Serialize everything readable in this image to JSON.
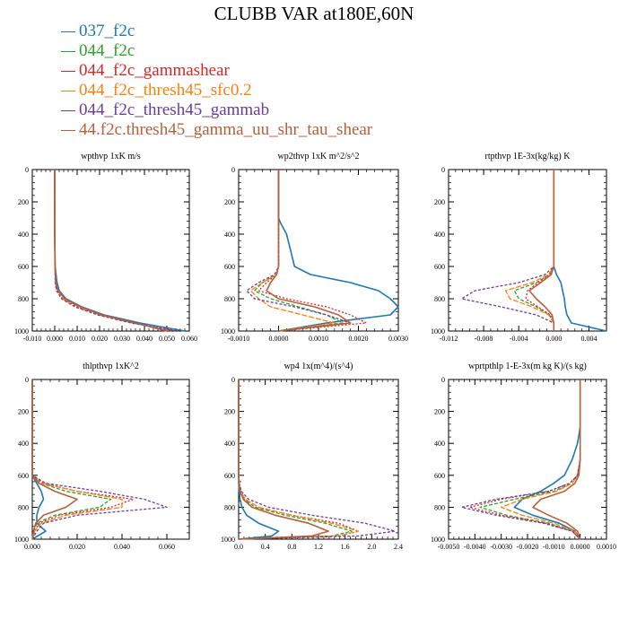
{
  "title": "CLUBB VAR at180E,60N",
  "colors": [
    "#1f77b4",
    "#2ca02c",
    "#d62728",
    "#ff7f0e",
    "#6a3d9a",
    "#b5603a"
  ],
  "legend": [
    {
      "label": "037_f2c",
      "color": "#1f77b4"
    },
    {
      "label": "044_f2c",
      "color": "#2ca02c"
    },
    {
      "label": "044_f2c_gammashear",
      "color": "#d62728"
    },
    {
      "label": "044_f2c_thresh45_sfc0.2",
      "color": "#ff7f0e"
    },
    {
      "label": "044_f2c_thresh45_gammab",
      "color": "#6a3d9a"
    },
    {
      "label": "44.f2c.thresh45_gamma_uu_shr_tau_shear",
      "color": "#b5603a"
    }
  ],
  "chart_data": [
    {
      "type": "line",
      "title": "wpthvp   1xK m/s",
      "xlim": [
        -0.01,
        0.06
      ],
      "xticks": [
        "-0.010",
        "0.000",
        "0.010",
        "0.020",
        "0.030",
        "0.040",
        "0.050",
        "0.060"
      ],
      "xtick_values": [
        -0.01,
        0.0,
        0.01,
        0.02,
        0.03,
        0.04,
        0.05,
        0.06
      ],
      "ylim": [
        0,
        1000
      ],
      "yticks": [
        "0",
        "200",
        "400",
        "600",
        "800",
        "1000"
      ],
      "y": [
        0,
        200,
        400,
        600,
        700,
        750,
        800,
        850,
        900,
        950,
        1000
      ],
      "series": [
        {
          "values": [
            0.0,
            0.0,
            0.0,
            0.0002,
            0.001,
            0.002,
            0.005,
            0.012,
            0.022,
            0.038,
            0.058
          ]
        },
        {
          "values": [
            0.0,
            0.0,
            0.0,
            0.0001,
            0.0005,
            0.0015,
            0.004,
            0.011,
            0.021,
            0.036,
            0.05
          ]
        },
        {
          "values": [
            0.0,
            0.0,
            0.0,
            0.0001,
            0.0003,
            0.001,
            0.0035,
            0.01,
            0.02,
            0.035,
            0.055
          ]
        },
        {
          "values": [
            0.0,
            0.0,
            0.0,
            0.0001,
            0.0004,
            0.0012,
            0.004,
            0.011,
            0.02,
            0.035,
            0.052
          ]
        },
        {
          "values": [
            0.0,
            0.0,
            0.0,
            0.0001,
            0.0002,
            0.0008,
            0.003,
            0.009,
            0.019,
            0.034,
            0.054
          ]
        },
        {
          "values": [
            0.0,
            0.0,
            0.0,
            0.0001,
            0.0004,
            0.0015,
            0.0045,
            0.0115,
            0.021,
            0.036,
            0.05
          ]
        }
      ]
    },
    {
      "type": "line",
      "title": "wp2thvp   1xK m^2/s^2",
      "xlim": [
        -0.001,
        0.003
      ],
      "xticks": [
        "-0.0010",
        "0.0000",
        "0.0010",
        "0.0020",
        "0.0030"
      ],
      "xtick_values": [
        -0.001,
        0.0,
        0.001,
        0.002,
        0.003
      ],
      "ylim": [
        0,
        1000
      ],
      "yticks": [
        "0",
        "200",
        "400",
        "600",
        "800",
        "1000"
      ],
      "y": [
        0,
        300,
        330,
        400,
        500,
        600,
        650,
        700,
        750,
        800,
        850,
        900,
        950,
        1000
      ],
      "series": [
        {
          "values": [
            0.0,
            0.0,
            5e-05,
            0.0002,
            0.0003,
            0.0004,
            0.0008,
            0.0018,
            0.0025,
            0.0028,
            0.003,
            0.0028,
            0.0012,
            0.0
          ]
        },
        {
          "values": [
            0.0,
            0.0,
            0.0,
            0.0,
            0.0,
            0.0,
            -5e-05,
            -0.0004,
            -0.0006,
            -0.0002,
            0.0005,
            0.0012,
            0.0016,
            0.0
          ]
        },
        {
          "values": [
            0.0,
            0.0,
            0.0,
            0.0,
            0.0,
            0.0,
            -5e-05,
            -0.0003,
            -0.0005,
            0.0002,
            0.0012,
            0.0018,
            0.0022,
            0.0
          ]
        },
        {
          "values": [
            0.0,
            0.0,
            0.0,
            0.0,
            0.0,
            0.0,
            -5e-05,
            -0.0004,
            -0.0007,
            -0.0005,
            -0.0002,
            0.0006,
            0.0014,
            0.0
          ]
        },
        {
          "values": [
            0.0,
            0.0,
            0.0,
            0.0,
            0.0,
            0.0,
            -0.0001,
            -0.0005,
            -0.0008,
            -0.0006,
            0.0004,
            0.0012,
            0.0018,
            0.0
          ]
        },
        {
          "values": [
            0.0,
            0.0,
            0.0,
            0.0,
            0.0,
            0.0,
            -5e-05,
            -0.0002,
            -0.0003,
            0.0,
            0.0009,
            0.0015,
            0.0018,
            0.0
          ]
        }
      ]
    },
    {
      "type": "line",
      "title": "rtpthvp   1E-3x(kg/kg) K",
      "xlim": [
        -0.012,
        0.006
      ],
      "xticks": [
        "-0.012",
        "-0.008",
        "-0.004",
        "0.000",
        "0.004"
      ],
      "xtick_values": [
        -0.012,
        -0.008,
        -0.004,
        0.0,
        0.004
      ],
      "ylim": [
        0,
        1000
      ],
      "yticks": [
        "0",
        "200",
        "400",
        "600",
        "800",
        "1000"
      ],
      "y": [
        0,
        200,
        400,
        600,
        650,
        700,
        750,
        800,
        850,
        900,
        950,
        1000
      ],
      "series": [
        {
          "values": [
            0.0,
            0.0,
            0.0,
            0.0,
            0.0003,
            0.0008,
            0.001,
            0.0012,
            0.0013,
            0.0015,
            0.002,
            0.006
          ]
        },
        {
          "values": [
            0.0,
            0.0,
            0.0,
            0.0,
            -0.0005,
            -0.002,
            -0.0045,
            -0.004,
            -0.002,
            -0.0005,
            0.0,
            0.0
          ]
        },
        {
          "values": [
            0.0,
            0.0,
            0.0,
            0.0,
            -0.0004,
            -0.0018,
            -0.003,
            -0.0032,
            -0.0018,
            -0.0004,
            0.0,
            0.0
          ]
        },
        {
          "values": [
            0.0,
            0.0,
            0.0,
            0.0,
            -0.0006,
            -0.0025,
            -0.0055,
            -0.005,
            -0.0025,
            -0.0006,
            0.0,
            0.0
          ]
        },
        {
          "values": [
            0.0,
            0.0,
            0.0,
            0.0,
            -0.001,
            -0.004,
            -0.009,
            -0.0105,
            -0.006,
            -0.002,
            0.0,
            0.0
          ]
        },
        {
          "values": [
            0.0,
            0.0,
            0.0,
            0.0,
            -0.0003,
            -0.0015,
            -0.0028,
            -0.002,
            -0.001,
            -0.0002,
            0.0,
            0.0
          ]
        }
      ]
    },
    {
      "type": "line",
      "title": "thlpthvp   1xK^2",
      "xlim": [
        0,
        0.07
      ],
      "xticks": [
        "0.000",
        "0.020",
        "0.040",
        "0.060"
      ],
      "xtick_values": [
        0.0,
        0.02,
        0.04,
        0.06
      ],
      "ylim": [
        0,
        1000
      ],
      "yticks": [
        "0",
        "200",
        "400",
        "600",
        "800",
        "1000"
      ],
      "y": [
        0,
        200,
        400,
        600,
        650,
        700,
        750,
        800,
        850,
        900,
        950,
        1000
      ],
      "series": [
        {
          "values": [
            0.0,
            0.0,
            0.0,
            0.0,
            0.002,
            0.004,
            0.005,
            0.003,
            0.002,
            0.002,
            0.006,
            0.0
          ]
        },
        {
          "values": [
            0.0,
            0.0,
            0.0,
            0.0,
            0.004,
            0.015,
            0.035,
            0.03,
            0.01,
            0.002,
            0.0005,
            0.0
          ]
        },
        {
          "values": [
            0.0,
            0.0,
            0.0,
            0.0,
            0.005,
            0.02,
            0.045,
            0.035,
            0.012,
            0.003,
            0.001,
            0.0
          ]
        },
        {
          "values": [
            0.0,
            0.0,
            0.0,
            0.0,
            0.004,
            0.02,
            0.04,
            0.04,
            0.015,
            0.004,
            0.001,
            0.0
          ]
        },
        {
          "values": [
            0.0,
            0.0,
            0.0,
            0.0,
            0.006,
            0.03,
            0.05,
            0.06,
            0.02,
            0.005,
            0.002,
            0.0
          ]
        },
        {
          "values": [
            0.0,
            0.0,
            0.0,
            0.0,
            0.003,
            0.01,
            0.02,
            0.015,
            0.005,
            0.0015,
            0.0005,
            0.0
          ]
        }
      ]
    },
    {
      "type": "line",
      "title": "wp4   1x(m^4)/(s^4)",
      "xlim": [
        0,
        2.4
      ],
      "xticks": [
        "0.0",
        "0.4",
        "0.8",
        "1.2",
        "1.6",
        "2.0",
        "2.4"
      ],
      "xtick_values": [
        0.0,
        0.4,
        0.8,
        1.2,
        1.6,
        2.0,
        2.4
      ],
      "ylim": [
        0,
        1000
      ],
      "yticks": [
        "0",
        "200",
        "400",
        "600",
        "800",
        "1000"
      ],
      "y": [
        0,
        600,
        650,
        700,
        750,
        800,
        850,
        900,
        950,
        980,
        1000
      ],
      "series": [
        {
          "values": [
            0.0,
            0.0,
            0.0,
            0.01,
            0.02,
            0.05,
            0.12,
            0.3,
            0.6,
            0.5,
            0.0
          ]
        },
        {
          "values": [
            0.0,
            0.0,
            0.01,
            0.02,
            0.08,
            0.25,
            0.7,
            1.3,
            1.7,
            1.4,
            0.0
          ]
        },
        {
          "values": [
            0.0,
            0.0,
            0.01,
            0.03,
            0.1,
            0.3,
            0.8,
            1.5,
            1.8,
            1.5,
            0.0
          ]
        },
        {
          "values": [
            0.0,
            0.0,
            0.01,
            0.03,
            0.1,
            0.3,
            0.8,
            1.4,
            1.8,
            1.5,
            0.0
          ]
        },
        {
          "values": [
            0.0,
            0.0,
            0.01,
            0.04,
            0.15,
            0.45,
            1.1,
            1.9,
            2.35,
            1.8,
            0.0
          ]
        },
        {
          "values": [
            0.0,
            0.0,
            0.01,
            0.02,
            0.07,
            0.2,
            0.55,
            1.05,
            1.35,
            1.1,
            0.0
          ]
        }
      ]
    },
    {
      "type": "line",
      "title": "wprtpthlp   1-E-3x(m kg K)/(s kg)",
      "xlim": [
        -0.005,
        0.001
      ],
      "xticks": [
        "-0.0050",
        "-0.0040",
        "-0.0030",
        "-0.0020",
        "-0.0010",
        "0.0000",
        "0.0010"
      ],
      "xtick_values": [
        -0.005,
        -0.004,
        -0.003,
        -0.002,
        -0.001,
        0.0,
        0.001
      ],
      "ylim": [
        0,
        1000
      ],
      "yticks": [
        "0",
        "200",
        "400",
        "600",
        "800",
        "1000"
      ],
      "y": [
        0,
        300,
        350,
        400,
        500,
        600,
        650,
        700,
        750,
        800,
        850,
        900,
        950,
        1000
      ],
      "series": [
        {
          "values": [
            0.0,
            0.0,
            -5e-05,
            -0.0001,
            -0.0003,
            -0.0006,
            -0.001,
            -0.0015,
            -0.0022,
            -0.0025,
            -0.0018,
            -0.0008,
            -0.0002,
            0.0
          ]
        },
        {
          "values": [
            0.0,
            0.0,
            0.0,
            0.0,
            0.0,
            -0.0001,
            -0.0003,
            -0.001,
            -0.0025,
            -0.0038,
            -0.0028,
            -0.0012,
            -0.0003,
            0.0
          ]
        },
        {
          "values": [
            0.0,
            0.0,
            0.0,
            0.0,
            0.0,
            -0.0001,
            -0.0004,
            -0.0012,
            -0.003,
            -0.0042,
            -0.003,
            -0.0013,
            -0.0003,
            0.0
          ]
        },
        {
          "values": [
            0.0,
            0.0,
            0.0,
            0.0,
            0.0,
            -0.0001,
            -0.0003,
            -0.0009,
            -0.0022,
            -0.003,
            -0.0022,
            -0.001,
            -0.0002,
            0.0
          ]
        },
        {
          "values": [
            0.0,
            0.0,
            0.0,
            0.0,
            0.0,
            -0.0001,
            -0.0004,
            -0.0012,
            -0.0032,
            -0.0045,
            -0.0032,
            -0.0014,
            -0.0003,
            0.0
          ]
        },
        {
          "values": [
            0.0,
            0.0,
            0.0,
            0.0,
            0.0,
            -5e-05,
            -0.0002,
            -0.0006,
            -0.0015,
            -0.0018,
            -0.0012,
            -0.0005,
            -0.0001,
            0.0
          ]
        }
      ]
    }
  ]
}
